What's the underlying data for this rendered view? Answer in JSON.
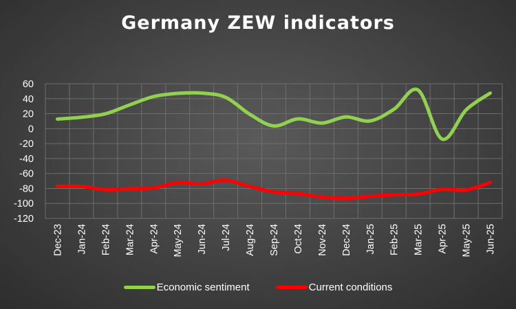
{
  "chart_data": {
    "type": "line",
    "title": "Germany ZEW indicators",
    "categories": [
      "Dec-23",
      "Jan-24",
      "Feb-24",
      "Mar-24",
      "Apr-24",
      "May-24",
      "Jun-24",
      "Jul-24",
      "Aug-24",
      "Sep-24",
      "Oct-24",
      "Nov-24",
      "Dec-24",
      "Jan-25",
      "Feb-25",
      "Mar-25",
      "Apr-25",
      "May-25",
      "Jun-25"
    ],
    "series": [
      {
        "name": "Economic sentiment",
        "color": "#92d050",
        "values": [
          12.8,
          15.2,
          19.9,
          31.7,
          42.9,
          47.1,
          47.5,
          41.8,
          19.2,
          3.6,
          13.1,
          7.4,
          15.7,
          10.3,
          26.0,
          51.6,
          -14.0,
          25.2,
          47.5
        ]
      },
      {
        "name": "Current conditions",
        "color": "#ff0000",
        "values": [
          -77.1,
          -77.3,
          -81.7,
          -80.5,
          -79.2,
          -72.3,
          -73.8,
          -68.9,
          -77.3,
          -84.5,
          -86.9,
          -91.4,
          -93.1,
          -90.4,
          -88.5,
          -87.6,
          -81.2,
          -82.0,
          -72.0
        ]
      }
    ],
    "yticks": [
      60,
      40,
      20,
      0,
      -20,
      -40,
      -60,
      -80,
      -100,
      -120
    ],
    "ylim": [
      -120,
      60
    ],
    "grid": true,
    "legend": "bottom",
    "xlabel": "",
    "ylabel": ""
  }
}
